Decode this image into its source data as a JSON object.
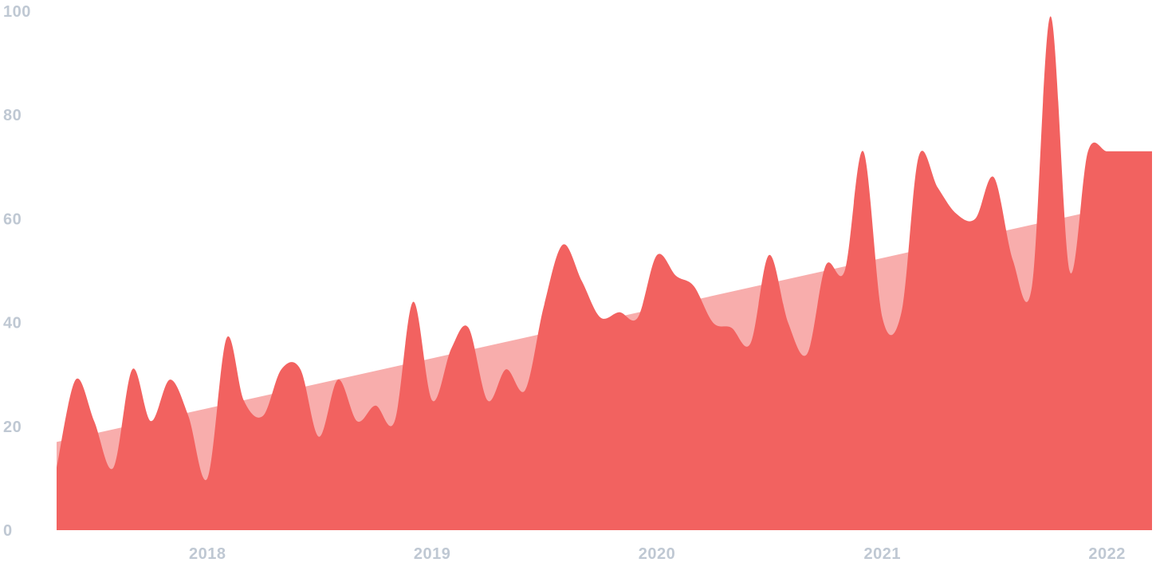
{
  "chart_data": {
    "type": "area",
    "title": "",
    "xlabel": "",
    "ylabel": "",
    "ylim": [
      0,
      100
    ],
    "y_ticks": [
      "0",
      "20",
      "40",
      "60",
      "80",
      "100"
    ],
    "x_ticks": [
      {
        "label": "2018",
        "date": "2018-01-01"
      },
      {
        "label": "2019",
        "date": "2019-01-01"
      },
      {
        "label": "2020",
        "date": "2020-01-01"
      },
      {
        "label": "2021",
        "date": "2021-01-01"
      },
      {
        "label": "2022",
        "date": "2022-01-01"
      }
    ],
    "x_range": [
      "2017-05-01",
      "2022-03-15"
    ],
    "grid": false,
    "series": [
      {
        "role": "values",
        "color": "#f26260",
        "x": [
          "2017-05-01",
          "2017-06-01",
          "2017-07-01",
          "2017-08-01",
          "2017-09-01",
          "2017-10-01",
          "2017-11-01",
          "2017-12-01",
          "2018-01-01",
          "2018-02-01",
          "2018-03-01",
          "2018-04-01",
          "2018-05-01",
          "2018-06-01",
          "2018-07-01",
          "2018-08-01",
          "2018-09-01",
          "2018-10-01",
          "2018-11-01",
          "2018-12-01",
          "2019-01-01",
          "2019-02-01",
          "2019-03-01",
          "2019-04-01",
          "2019-05-01",
          "2019-06-01",
          "2019-07-01",
          "2019-08-01",
          "2019-09-01",
          "2019-10-01",
          "2019-11-01",
          "2019-12-01",
          "2020-01-01",
          "2020-02-01",
          "2020-03-01",
          "2020-04-01",
          "2020-05-01",
          "2020-06-01",
          "2020-07-01",
          "2020-08-01",
          "2020-09-01",
          "2020-10-01",
          "2020-11-01",
          "2020-12-01",
          "2021-01-01",
          "2021-02-01",
          "2021-03-01",
          "2021-04-01",
          "2021-05-01",
          "2021-06-01",
          "2021-07-01",
          "2021-08-01",
          "2021-09-01",
          "2021-10-01",
          "2021-11-01",
          "2021-12-01",
          "2022-01-01",
          "2022-02-01",
          "2022-03-01",
          "2022-03-15"
        ],
        "values": [
          12,
          29,
          21,
          12,
          31,
          21,
          29,
          22,
          10,
          37,
          25,
          22,
          31,
          31,
          18,
          29,
          21,
          24,
          21,
          44,
          25,
          35,
          39,
          25,
          31,
          27,
          43,
          55,
          48,
          41,
          42,
          41,
          53,
          49,
          47,
          40,
          39,
          36,
          53,
          40,
          34,
          51,
          50,
          73,
          41,
          42,
          72,
          66,
          61,
          60,
          68,
          52,
          47,
          99,
          50,
          73,
          73,
          73,
          73,
          73
        ]
      },
      {
        "role": "trend",
        "color": "#f8adac",
        "x": [
          "2017-05-01",
          "2022-03-15"
        ],
        "values": [
          17,
          64
        ]
      }
    ]
  }
}
